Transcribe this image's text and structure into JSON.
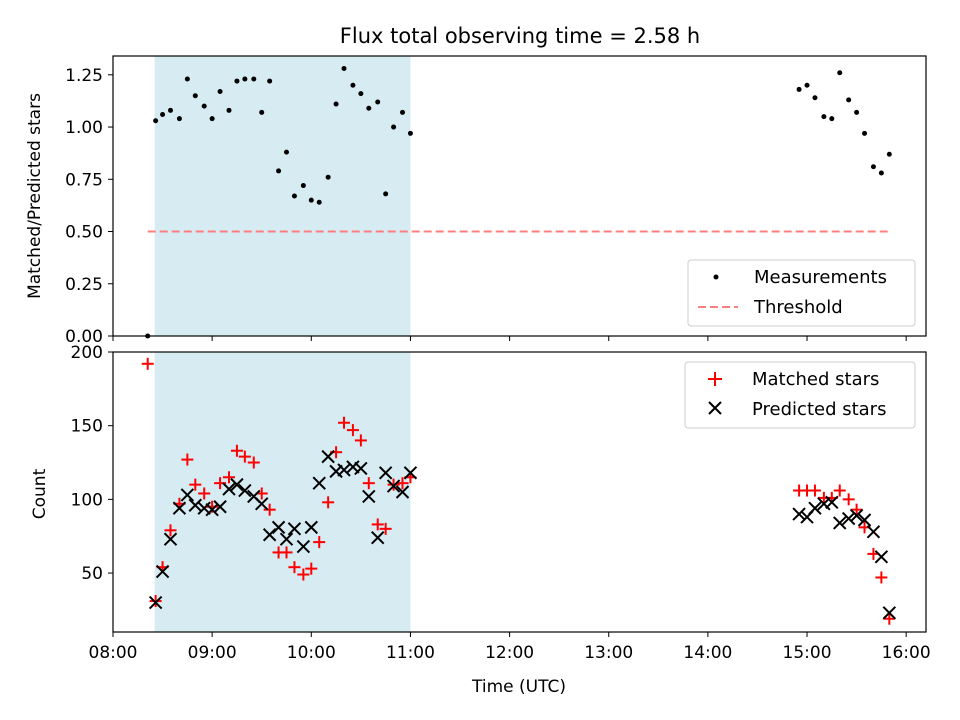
{
  "title": "Flux total observing time = 2.58 h",
  "chart_data": [
    {
      "type": "scatter",
      "panel": "top",
      "ylabel": "Matched/Predicted stars",
      "xlim": [
        8.0,
        16.2
      ],
      "ylim": [
        0.0,
        1.34
      ],
      "yticks": [
        0.0,
        0.25,
        0.5,
        0.75,
        1.0,
        1.25
      ],
      "ytick_labels": [
        "0.00",
        "0.25",
        "0.50",
        "0.75",
        "1.00",
        "1.25"
      ],
      "shaded_span": [
        8.42,
        11.0
      ],
      "threshold": {
        "value": 0.5,
        "x": [
          8.35,
          15.85
        ],
        "color": "#ff7f7f"
      },
      "legend": {
        "position": "lower-right",
        "measurements": "Measurements",
        "threshold": "Threshold"
      },
      "series": [
        {
          "name": "Measurements",
          "color": "#000000",
          "points": [
            [
              8.35,
              0.0
            ],
            [
              8.43,
              1.03
            ],
            [
              8.5,
              1.06
            ],
            [
              8.58,
              1.08
            ],
            [
              8.67,
              1.04
            ],
            [
              8.75,
              1.23
            ],
            [
              8.83,
              1.15
            ],
            [
              8.92,
              1.1
            ],
            [
              9.0,
              1.04
            ],
            [
              9.08,
              1.17
            ],
            [
              9.17,
              1.08
            ],
            [
              9.25,
              1.22
            ],
            [
              9.33,
              1.23
            ],
            [
              9.42,
              1.23
            ],
            [
              9.5,
              1.07
            ],
            [
              9.58,
              1.22
            ],
            [
              9.67,
              0.79
            ],
            [
              9.75,
              0.88
            ],
            [
              9.83,
              0.67
            ],
            [
              9.92,
              0.72
            ],
            [
              10.0,
              0.65
            ],
            [
              10.08,
              0.64
            ],
            [
              10.17,
              0.76
            ],
            [
              10.25,
              1.11
            ],
            [
              10.33,
              1.28
            ],
            [
              10.42,
              1.2
            ],
            [
              10.5,
              1.16
            ],
            [
              10.58,
              1.09
            ],
            [
              10.67,
              1.12
            ],
            [
              10.75,
              0.68
            ],
            [
              10.83,
              1.0
            ],
            [
              10.92,
              1.07
            ],
            [
              11.0,
              0.97
            ],
            [
              14.92,
              1.18
            ],
            [
              15.0,
              1.2
            ],
            [
              15.08,
              1.14
            ],
            [
              15.17,
              1.05
            ],
            [
              15.25,
              1.04
            ],
            [
              15.33,
              1.26
            ],
            [
              15.42,
              1.13
            ],
            [
              15.5,
              1.07
            ],
            [
              15.58,
              0.97
            ],
            [
              15.67,
              0.81
            ],
            [
              15.75,
              0.78
            ],
            [
              15.83,
              0.87
            ]
          ]
        }
      ]
    },
    {
      "type": "scatter",
      "panel": "bottom",
      "ylabel": "Count",
      "xlabel": "Time (UTC)",
      "xlim": [
        8.0,
        16.2
      ],
      "ylim": [
        10,
        200
      ],
      "xticks": [
        8,
        9,
        10,
        11,
        12,
        13,
        14,
        15,
        16
      ],
      "xtick_labels": [
        "08:00",
        "09:00",
        "10:00",
        "11:00",
        "12:00",
        "13:00",
        "14:00",
        "15:00",
        "16:00"
      ],
      "yticks": [
        50,
        100,
        150,
        200
      ],
      "ytick_labels": [
        "50",
        "100",
        "150",
        "200"
      ],
      "shaded_span": [
        8.42,
        11.0
      ],
      "legend": {
        "position": "upper-right",
        "matched": "Matched stars",
        "predicted": "Predicted stars"
      },
      "series": [
        {
          "name": "Matched stars",
          "marker": "+",
          "color": "#ff0000",
          "points": [
            [
              8.35,
              192
            ],
            [
              8.43,
              31
            ],
            [
              8.5,
              54
            ],
            [
              8.58,
              79
            ],
            [
              8.67,
              97
            ],
            [
              8.75,
              127
            ],
            [
              8.83,
              110
            ],
            [
              8.92,
              104
            ],
            [
              9.0,
              95
            ],
            [
              9.08,
              111
            ],
            [
              9.17,
              115
            ],
            [
              9.25,
              133
            ],
            [
              9.33,
              129
            ],
            [
              9.42,
              125
            ],
            [
              9.5,
              104
            ],
            [
              9.58,
              93
            ],
            [
              9.67,
              64
            ],
            [
              9.75,
              64
            ],
            [
              9.83,
              54
            ],
            [
              9.92,
              49
            ],
            [
              10.0,
              53
            ],
            [
              10.08,
              71
            ],
            [
              10.17,
              98
            ],
            [
              10.25,
              132
            ],
            [
              10.33,
              152
            ],
            [
              10.42,
              147
            ],
            [
              10.5,
              140
            ],
            [
              10.58,
              111
            ],
            [
              10.67,
              83
            ],
            [
              10.75,
              80
            ],
            [
              10.83,
              110
            ],
            [
              10.92,
              111
            ],
            [
              11.0,
              115
            ],
            [
              14.92,
              106
            ],
            [
              15.0,
              106
            ],
            [
              15.08,
              106
            ],
            [
              15.17,
              101
            ],
            [
              15.25,
              101
            ],
            [
              15.33,
              106
            ],
            [
              15.42,
              100
            ],
            [
              15.5,
              93
            ],
            [
              15.58,
              81
            ],
            [
              15.67,
              63
            ],
            [
              15.75,
              47
            ],
            [
              15.83,
              19
            ]
          ]
        },
        {
          "name": "Predicted stars",
          "marker": "x",
          "color": "#000000",
          "points": [
            [
              8.43,
              30
            ],
            [
              8.5,
              51
            ],
            [
              8.58,
              73
            ],
            [
              8.67,
              94
            ],
            [
              8.75,
              103
            ],
            [
              8.83,
              96
            ],
            [
              8.92,
              94
            ],
            [
              9.0,
              93
            ],
            [
              9.08,
              95
            ],
            [
              9.17,
              107
            ],
            [
              9.25,
              110
            ],
            [
              9.33,
              106
            ],
            [
              9.42,
              102
            ],
            [
              9.5,
              97
            ],
            [
              9.58,
              76
            ],
            [
              9.67,
              81
            ],
            [
              9.75,
              73
            ],
            [
              9.83,
              80
            ],
            [
              9.92,
              68
            ],
            [
              10.0,
              81
            ],
            [
              10.08,
              111
            ],
            [
              10.17,
              129
            ],
            [
              10.25,
              119
            ],
            [
              10.33,
              120
            ],
            [
              10.42,
              122
            ],
            [
              10.5,
              121
            ],
            [
              10.58,
              102
            ],
            [
              10.67,
              74
            ],
            [
              10.75,
              118
            ],
            [
              10.83,
              109
            ],
            [
              10.92,
              105
            ],
            [
              11.0,
              118
            ],
            [
              14.92,
              90
            ],
            [
              15.0,
              88
            ],
            [
              15.08,
              94
            ],
            [
              15.17,
              97
            ],
            [
              15.25,
              98
            ],
            [
              15.33,
              84
            ],
            [
              15.42,
              87
            ],
            [
              15.5,
              89
            ],
            [
              15.58,
              86
            ],
            [
              15.67,
              78
            ],
            [
              15.75,
              61
            ],
            [
              15.83,
              23
            ]
          ]
        }
      ]
    }
  ]
}
